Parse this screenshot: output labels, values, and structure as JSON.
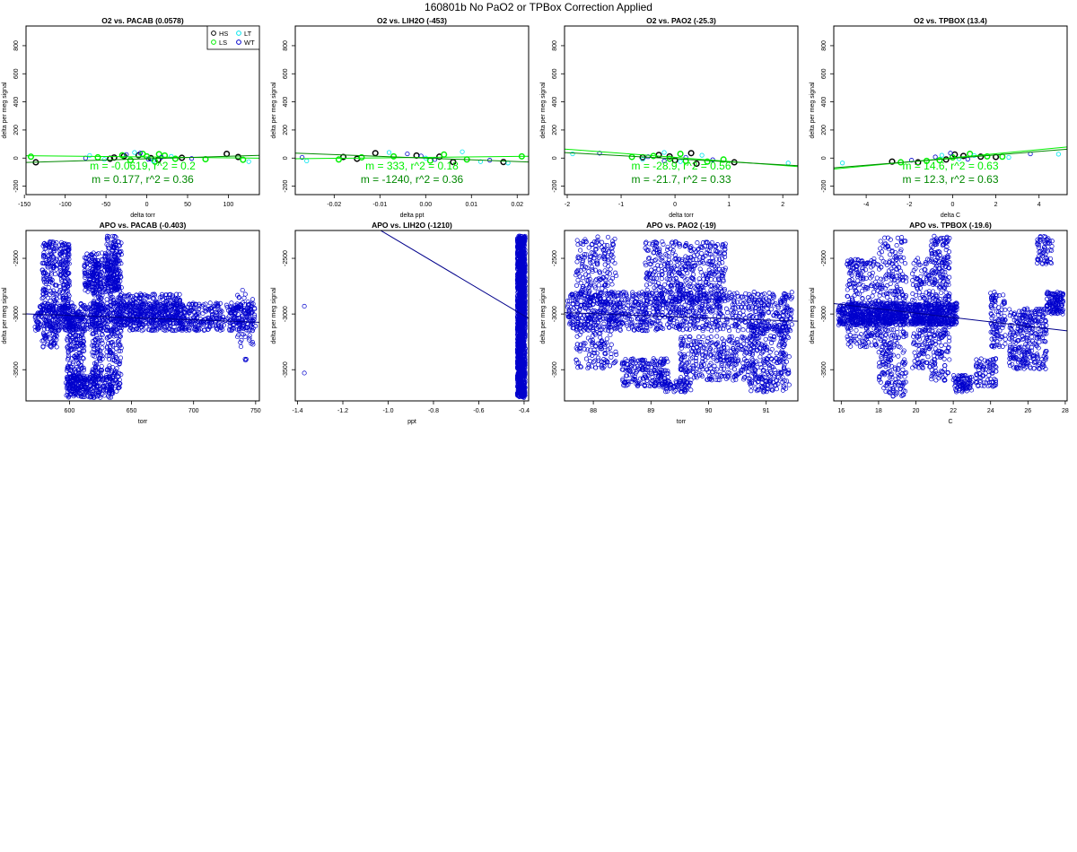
{
  "figure_title": "160801b   No PaO2 or TPBox Correction Applied",
  "legend": {
    "items": [
      {
        "label": "HS",
        "color": "#000000"
      },
      {
        "label": "LT",
        "color": "#00e5ee"
      },
      {
        "label": "LS",
        "color": "#00ee00"
      },
      {
        "label": "WT",
        "color": "#0000cd"
      }
    ]
  },
  "colors": {
    "fit_primary": "#00ee00",
    "fit_secondary": "#008800",
    "apo_points": "#0000cd",
    "apo_fit": "#00008b"
  },
  "chart_data": [
    {
      "type": "scatter",
      "title": "O2 vs. PACAB (0.0578)",
      "xlabel": "delta torr",
      "ylabel": "delta per meg signal",
      "xlim": [
        -148,
        138
      ],
      "ylim": [
        -260,
        940
      ],
      "xticks": [
        -150,
        -100,
        -50,
        0,
        50,
        100
      ],
      "yticks": [
        -200,
        0,
        200,
        400,
        600,
        800
      ],
      "legend_position": "top-right",
      "annotations": [
        "m = -0.0619, r^2 = 0.2",
        "m = 0.177, r^2 = 0.36"
      ],
      "fits": [
        {
          "slope": -0.0619,
          "intercept": 8,
          "color": "#00ee00"
        },
        {
          "slope": 0.177,
          "intercept": -5,
          "color": "#008800"
        }
      ],
      "series": [
        {
          "name": "HS",
          "points": [
            [
              -136,
              -30
            ],
            [
              -28,
              14
            ],
            [
              -10,
              20
            ],
            [
              5,
              0
            ],
            [
              43,
              2
            ],
            [
              98,
              30
            ],
            [
              112,
              8
            ],
            [
              -45,
              -5
            ],
            [
              14,
              -12
            ],
            [
              -40,
              4
            ]
          ]
        },
        {
          "name": "LS",
          "points": [
            [
              -142,
              10
            ],
            [
              -60,
              5
            ],
            [
              -20,
              -15
            ],
            [
              -5,
              30
            ],
            [
              10,
              -25
            ],
            [
              22,
              18
            ],
            [
              35,
              -5
            ],
            [
              72,
              -8
            ],
            [
              118,
              -12
            ],
            [
              -30,
              20
            ],
            [
              0,
              12
            ],
            [
              15,
              28
            ]
          ]
        },
        {
          "name": "LT",
          "points": [
            [
              -70,
              18
            ],
            [
              -15,
              40
            ],
            [
              8,
              -20
            ],
            [
              30,
              12
            ],
            [
              125,
              -25
            ],
            [
              -52,
              -10
            ]
          ]
        },
        {
          "name": "WT",
          "points": [
            [
              -75,
              0
            ],
            [
              -25,
              25
            ],
            [
              2,
              -8
            ],
            [
              18,
              6
            ],
            [
              55,
              -3
            ],
            [
              -8,
              35
            ]
          ]
        }
      ]
    },
    {
      "type": "scatter",
      "title": "O2 vs. LIH2O (-453)",
      "xlabel": "delta ppt",
      "ylabel": "delta per meg signal",
      "xlim": [
        -0.0285,
        0.0225
      ],
      "ylim": [
        -260,
        940
      ],
      "xticks": [
        -0.02,
        -0.01,
        0.0,
        0.01,
        0.02
      ],
      "yticks": [
        -200,
        0,
        200,
        400,
        600,
        800
      ],
      "annotations": [
        "m = 333, r^2 = 0.18",
        "m = -1240, r^2 = 0.36"
      ],
      "fits": [
        {
          "slope": 333,
          "intercept": 5,
          "color": "#00ee00"
        },
        {
          "slope": -1240,
          "intercept": 0,
          "color": "#008800"
        }
      ],
      "series": [
        {
          "name": "HS",
          "points": [
            [
              -0.018,
              8
            ],
            [
              -0.011,
              35
            ],
            [
              -0.002,
              18
            ],
            [
              0.006,
              -28
            ],
            [
              0.017,
              -28
            ],
            [
              -0.015,
              -5
            ],
            [
              0.003,
              10
            ]
          ]
        },
        {
          "name": "LS",
          "points": [
            [
              -0.019,
              -10
            ],
            [
              -0.014,
              5
            ],
            [
              -0.007,
              12
            ],
            [
              0.001,
              -18
            ],
            [
              0.009,
              -10
            ],
            [
              0.021,
              12
            ],
            [
              0.004,
              25
            ]
          ]
        },
        {
          "name": "LT",
          "points": [
            [
              -0.026,
              -20
            ],
            [
              -0.008,
              40
            ],
            [
              0.0,
              0
            ],
            [
              0.008,
              45
            ],
            [
              0.012,
              -25
            ],
            [
              0.018,
              -35
            ]
          ]
        },
        {
          "name": "WT",
          "points": [
            [
              -0.027,
              5
            ],
            [
              -0.004,
              30
            ],
            [
              0.002,
              -10
            ],
            [
              0.014,
              -15
            ],
            [
              -0.001,
              15
            ]
          ]
        }
      ]
    },
    {
      "type": "scatter",
      "title": "O2 vs. PAO2 (-25.3)",
      "xlabel": "delta torr",
      "ylabel": "delta per meg signal",
      "xlim": [
        -2.05,
        2.28
      ],
      "ylim": [
        -260,
        940
      ],
      "xticks": [
        -2,
        -1,
        0,
        1,
        2
      ],
      "yticks": [
        -200,
        0,
        200,
        400,
        600,
        800
      ],
      "annotations": [
        "m = -28.9, r^2 = 0.56",
        "m = -21.7, r^2 = 0.33"
      ],
      "fits": [
        {
          "slope": -28.9,
          "intercept": 5,
          "color": "#00ee00"
        },
        {
          "slope": -21.7,
          "intercept": -5,
          "color": "#008800"
        }
      ],
      "series": [
        {
          "name": "HS",
          "points": [
            [
              -0.6,
              5
            ],
            [
              -0.3,
              22
            ],
            [
              0.0,
              -15
            ],
            [
              0.3,
              35
            ],
            [
              0.4,
              -40
            ],
            [
              1.1,
              -30
            ],
            [
              -0.1,
              12
            ]
          ]
        },
        {
          "name": "LS",
          "points": [
            [
              -0.8,
              8
            ],
            [
              -0.4,
              15
            ],
            [
              -0.1,
              -5
            ],
            [
              0.2,
              -20
            ],
            [
              0.6,
              -25
            ],
            [
              0.9,
              -10
            ],
            [
              0.1,
              30
            ]
          ]
        },
        {
          "name": "LT",
          "points": [
            [
              -1.9,
              30
            ],
            [
              -0.2,
              40
            ],
            [
              0.1,
              -25
            ],
            [
              0.5,
              20
            ],
            [
              2.1,
              -35
            ],
            [
              -0.6,
              -10
            ]
          ]
        },
        {
          "name": "WT",
          "points": [
            [
              -1.4,
              35
            ],
            [
              -0.5,
              10
            ],
            [
              0.2,
              5
            ],
            [
              0.7,
              -12
            ],
            [
              -0.2,
              -20
            ]
          ]
        }
      ]
    },
    {
      "type": "scatter",
      "title": "O2 vs. TPBOX (13.4)",
      "xlabel": "delta C",
      "ylabel": "delta per meg signal",
      "xlim": [
        -5.5,
        5.3
      ],
      "ylim": [
        -260,
        940
      ],
      "xticks": [
        -4,
        -2,
        0,
        2,
        4
      ],
      "yticks": [
        -200,
        0,
        200,
        400,
        600,
        800
      ],
      "annotations": [
        "m = 14.6, r^2 = 0.63",
        "m = 12.3, r^2 = 0.63"
      ],
      "fits": [
        {
          "slope": 14.6,
          "intercept": 2,
          "color": "#00ee00"
        },
        {
          "slope": 12.3,
          "intercept": -2,
          "color": "#008800"
        }
      ],
      "series": [
        {
          "name": "HS",
          "points": [
            [
              -2.8,
              -25
            ],
            [
              -1.6,
              -30
            ],
            [
              -0.3,
              -10
            ],
            [
              0.5,
              15
            ],
            [
              1.3,
              10
            ],
            [
              2.0,
              8
            ],
            [
              0.1,
              25
            ]
          ]
        },
        {
          "name": "LS",
          "points": [
            [
              -2.4,
              -30
            ],
            [
              -1.2,
              -20
            ],
            [
              0.0,
              5
            ],
            [
              0.8,
              30
            ],
            [
              1.6,
              12
            ],
            [
              2.3,
              10
            ],
            [
              -0.6,
              -15
            ]
          ]
        },
        {
          "name": "LT",
          "points": [
            [
              -5.1,
              -35
            ],
            [
              -0.5,
              20
            ],
            [
              0.3,
              -5
            ],
            [
              1.0,
              18
            ],
            [
              4.9,
              28
            ],
            [
              2.6,
              5
            ]
          ]
        },
        {
          "name": "WT",
          "points": [
            [
              -1.9,
              -15
            ],
            [
              -0.1,
              35
            ],
            [
              0.7,
              -8
            ],
            [
              3.6,
              30
            ],
            [
              -0.8,
              8
            ]
          ]
        }
      ]
    },
    {
      "type": "scatter",
      "title": "APO vs. PACAB (-0.403)",
      "xlabel": "torr",
      "ylabel": "delta per meg signal",
      "xlim": [
        565,
        753
      ],
      "ylim": [
        -3780,
        -2250
      ],
      "xticks": [
        600,
        650,
        700,
        750
      ],
      "yticks": [
        -3500,
        -3000,
        -2500
      ],
      "fits": [
        {
          "slope": -0.403,
          "intercept": -2771,
          "color": "#00008b"
        }
      ],
      "clusters": [
        {
          "x": [
            572,
            750
          ],
          "y": [
            -3150,
            -2900
          ],
          "n": 1000
        },
        {
          "x": [
            578,
            590
          ],
          "y": [
            -3300,
            -2350
          ],
          "n": 220
        },
        {
          "x": [
            592,
            600
          ],
          "y": [
            -3150,
            -2350
          ],
          "n": 180
        },
        {
          "x": [
            597,
            635
          ],
          "y": [
            -3750,
            -3550
          ],
          "n": 250
        },
        {
          "x": [
            598,
            612
          ],
          "y": [
            -3700,
            -3000
          ],
          "n": 220
        },
        {
          "x": [
            612,
            640
          ],
          "y": [
            -2800,
            -2450
          ],
          "n": 250
        },
        {
          "x": [
            618,
            627
          ],
          "y": [
            -3600,
            -2500
          ],
          "n": 200
        },
        {
          "x": [
            630,
            642
          ],
          "y": [
            -3700,
            -2300
          ],
          "n": 300
        },
        {
          "x": [
            640,
            690
          ],
          "y": [
            -3100,
            -2820
          ],
          "n": 300
        },
        {
          "x": [
            735,
            748
          ],
          "y": [
            -3300,
            -2780
          ],
          "n": 50
        },
        {
          "x": [
            740,
            745
          ],
          "y": [
            -3450,
            -3400
          ],
          "n": 3
        }
      ]
    },
    {
      "type": "scatter",
      "title": "APO vs. LIH2O (-1210)",
      "xlabel": "ppt",
      "ylabel": "delta per meg signal",
      "xlim": [
        -1.41,
        -0.38
      ],
      "ylim": [
        -3780,
        -2250
      ],
      "xticks": [
        -1.4,
        -1.2,
        -1.0,
        -0.8,
        -0.6,
        -0.4
      ],
      "yticks": [
        -3500,
        -3000,
        -2500
      ],
      "fits": [
        {
          "slope": -1210,
          "intercept": -3500,
          "color": "#00008b"
        }
      ],
      "points": [
        [
          -1.37,
          -2930
        ],
        [
          -1.37,
          -3530
        ]
      ],
      "clusters": [
        {
          "x": [
            -0.43,
            -0.395
          ],
          "y": [
            -3750,
            -2300
          ],
          "n": 1600
        }
      ]
    },
    {
      "type": "scatter",
      "title": "APO vs. PAO2 (-19)",
      "xlabel": "torr",
      "ylabel": "delta per meg signal",
      "xlim": [
        87.5,
        91.55
      ],
      "ylim": [
        -3780,
        -2250
      ],
      "xticks": [
        88,
        89,
        90,
        91
      ],
      "yticks": [
        -3500,
        -3000,
        -2500
      ],
      "fits": [
        {
          "slope": -19,
          "intercept": -1325,
          "color": "#00008b"
        }
      ],
      "clusters": [
        {
          "x": [
            87.55,
            91.45
          ],
          "y": [
            -3150,
            -2800
          ],
          "n": 1000
        },
        {
          "x": [
            87.7,
            88.4
          ],
          "y": [
            -3500,
            -2300
          ],
          "n": 350
        },
        {
          "x": [
            88.9,
            90.3
          ],
          "y": [
            -2900,
            -2350
          ],
          "n": 450
        },
        {
          "x": [
            88.5,
            89.3
          ],
          "y": [
            -3650,
            -3400
          ],
          "n": 200
        },
        {
          "x": [
            89.5,
            90.7
          ],
          "y": [
            -3600,
            -3200
          ],
          "n": 300
        },
        {
          "x": [
            90.7,
            91.4
          ],
          "y": [
            -3700,
            -3100
          ],
          "n": 300
        },
        {
          "x": [
            89.2,
            89.7
          ],
          "y": [
            -3700,
            -3600
          ],
          "n": 60
        }
      ]
    },
    {
      "type": "scatter",
      "title": "APO vs. TPBOX (-19.6)",
      "xlabel": "C",
      "ylabel": "delta per meg signal",
      "xlim": [
        15.6,
        28.1
      ],
      "ylim": [
        -3780,
        -2250
      ],
      "xticks": [
        16,
        18,
        20,
        22,
        24,
        26,
        28
      ],
      "yticks": [
        -3500,
        -3000,
        -2500
      ],
      "fits": [
        {
          "slope": -19.6,
          "intercept": -2600,
          "color": "#00008b"
        }
      ],
      "clusters": [
        {
          "x": [
            15.8,
            22.2
          ],
          "y": [
            -3100,
            -2900
          ],
          "n": 900
        },
        {
          "x": [
            16.3,
            18.0
          ],
          "y": [
            -3300,
            -2500
          ],
          "n": 250
        },
        {
          "x": [
            18.0,
            19.5
          ],
          "y": [
            -3750,
            -2300
          ],
          "n": 350
        },
        {
          "x": [
            19.8,
            20.8
          ],
          "y": [
            -3500,
            -2500
          ],
          "n": 200
        },
        {
          "x": [
            20.8,
            21.8
          ],
          "y": [
            -3600,
            -2300
          ],
          "n": 300
        },
        {
          "x": [
            22.0,
            23.0
          ],
          "y": [
            -3700,
            -3550
          ],
          "n": 80
        },
        {
          "x": [
            23.2,
            24.3
          ],
          "y": [
            -3650,
            -3400
          ],
          "n": 80
        },
        {
          "x": [
            24.0,
            24.8
          ],
          "y": [
            -3300,
            -2800
          ],
          "n": 100
        },
        {
          "x": [
            25.0,
            27.0
          ],
          "y": [
            -3500,
            -2950
          ],
          "n": 300
        },
        {
          "x": [
            26.5,
            27.3
          ],
          "y": [
            -2550,
            -2300
          ],
          "n": 60
        },
        {
          "x": [
            27.0,
            27.9
          ],
          "y": [
            -3000,
            -2800
          ],
          "n": 120
        }
      ]
    }
  ]
}
